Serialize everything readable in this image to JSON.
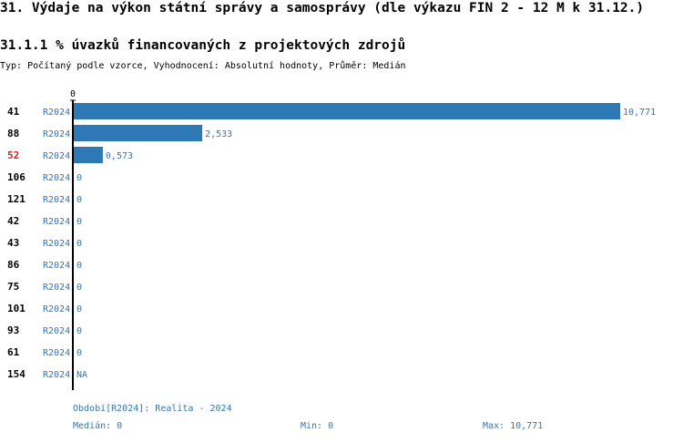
{
  "page": {
    "title": "31. Výdaje na výkon státní správy a samosprávy (dle výkazu FIN 2 - 12 M k 31.12.)",
    "subtitle": "31.1.1 % úvazků financovaných z projektových zdrojů",
    "meta": "Typ: Počítaný podle vzorce, Vyhodnocení: Absolutní hodnoty, Průměr: Medián"
  },
  "colors": {
    "bar": "#2e78b5",
    "text_blue": "#2e78b5",
    "highlight": "#d42020",
    "axis": "#000000"
  },
  "chart_data": {
    "type": "bar",
    "orientation": "horizontal",
    "axis_tick_label": "0",
    "xlim": [
      0,
      10.771
    ],
    "highlighted": "52",
    "rows": [
      {
        "id": "41",
        "period": "R2024",
        "value": 10.771,
        "label": "10,771"
      },
      {
        "id": "88",
        "period": "R2024",
        "value": 2.533,
        "label": "2,533"
      },
      {
        "id": "52",
        "period": "R2024",
        "value": 0.573,
        "label": "0,573"
      },
      {
        "id": "106",
        "period": "R2024",
        "value": 0,
        "label": "0"
      },
      {
        "id": "121",
        "period": "R2024",
        "value": 0,
        "label": "0"
      },
      {
        "id": "42",
        "period": "R2024",
        "value": 0,
        "label": "0"
      },
      {
        "id": "43",
        "period": "R2024",
        "value": 0,
        "label": "0"
      },
      {
        "id": "86",
        "period": "R2024",
        "value": 0,
        "label": "0"
      },
      {
        "id": "75",
        "period": "R2024",
        "value": 0,
        "label": "0"
      },
      {
        "id": "101",
        "period": "R2024",
        "value": 0,
        "label": "0"
      },
      {
        "id": "93",
        "period": "R2024",
        "value": 0,
        "label": "0"
      },
      {
        "id": "61",
        "period": "R2024",
        "value": 0,
        "label": "0"
      },
      {
        "id": "154",
        "period": "R2024",
        "value": null,
        "label": "NA"
      }
    ]
  },
  "footer": {
    "period": "Období[R2024]: Realita - 2024",
    "median": "Medián: 0",
    "min": "Min: 0",
    "max": "Max: 10,771"
  }
}
